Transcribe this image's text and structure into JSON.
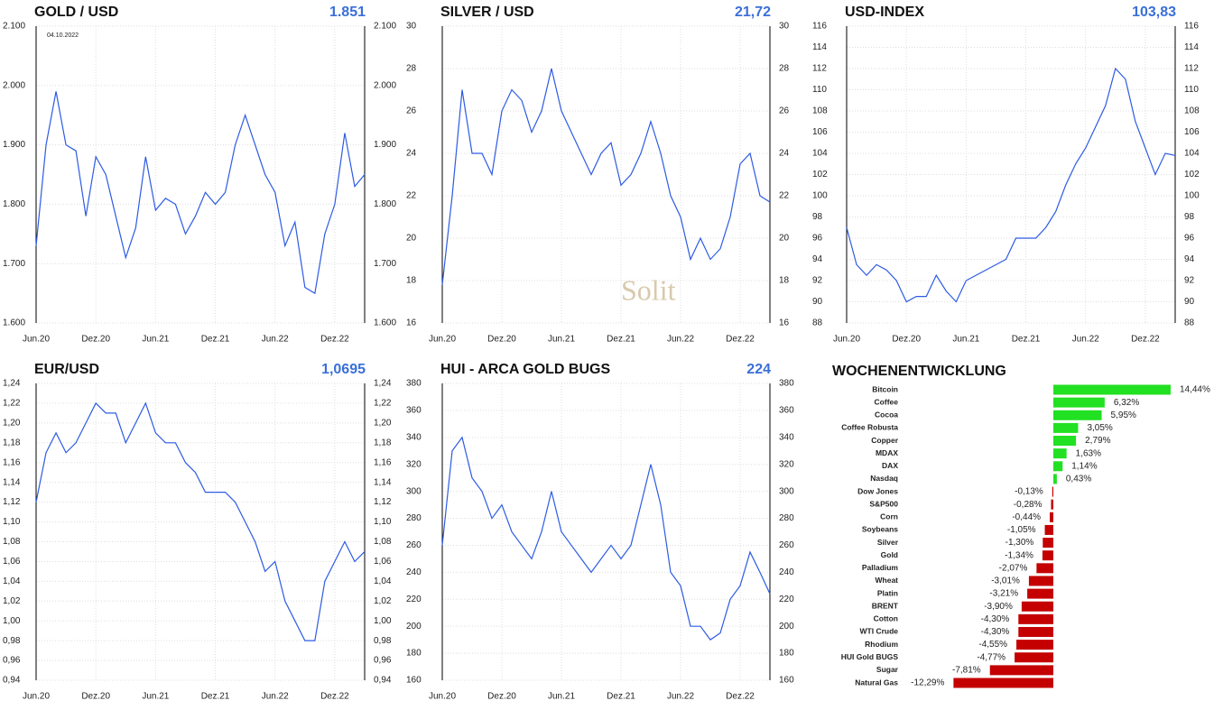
{
  "chart_data": [
    {
      "type": "line",
      "title": "GOLD / USD",
      "headline": "1.851",
      "annotation": "04.10.2022",
      "categories": [
        "Jun.20",
        null,
        null,
        null,
        null,
        null,
        "Dez.20",
        null,
        null,
        null,
        null,
        null,
        "Jun.21",
        null,
        null,
        null,
        null,
        null,
        "Dez.21",
        null,
        null,
        null,
        null,
        null,
        "Jun.22",
        null,
        null,
        null,
        null,
        null,
        "Dez.22",
        null,
        null,
        null
      ],
      "series": [
        {
          "name": "GOLD / USD",
          "color": "#2d5be3",
          "values": [
            1730,
            1900,
            1990,
            1900,
            1890,
            1780,
            1880,
            1850,
            1780,
            1710,
            1760,
            1880,
            1790,
            1810,
            1800,
            1750,
            1780,
            1820,
            1800,
            1820,
            1900,
            1950,
            1900,
            1850,
            1820,
            1730,
            1770,
            1660,
            1650,
            1750,
            1800,
            1920,
            1830,
            1850
          ]
        }
      ],
      "ylim": [
        1600,
        2100
      ],
      "yticks": [
        {
          "value": 1600,
          "label": "1.600"
        },
        {
          "value": 1700,
          "label": "1.700"
        },
        {
          "value": 1800,
          "label": "1.800"
        },
        {
          "value": 1900,
          "label": "1.900"
        },
        {
          "value": 2000,
          "label": "2.000"
        },
        {
          "value": 2100,
          "label": "2.100"
        }
      ],
      "grid": true
    },
    {
      "type": "line",
      "title": "SILVER / USD",
      "headline": "21,72",
      "watermark": "Solit",
      "categories": [
        "Jun.20",
        null,
        null,
        null,
        null,
        null,
        "Dez.20",
        null,
        null,
        null,
        null,
        null,
        "Jun.21",
        null,
        null,
        null,
        null,
        null,
        "Dez.21",
        null,
        null,
        null,
        null,
        null,
        "Jun.22",
        null,
        null,
        null,
        null,
        null,
        "Dez.22",
        null,
        null,
        null
      ],
      "series": [
        {
          "name": "SILVER / USD",
          "color": "#2d5be3",
          "values": [
            17.8,
            22,
            27,
            24,
            24,
            23,
            26,
            27,
            26.5,
            25,
            26,
            28,
            26,
            25,
            24,
            23,
            24,
            24.5,
            22.5,
            23,
            24,
            25.5,
            24,
            22,
            21,
            19,
            20,
            19,
            19.5,
            21,
            23.5,
            24,
            22,
            21.7
          ]
        }
      ],
      "ylim": [
        16,
        30
      ],
      "yticks": [
        16,
        18,
        20,
        22,
        24,
        26,
        28,
        30
      ],
      "grid": true
    },
    {
      "type": "line",
      "title": "USD-INDEX",
      "headline": "103,83",
      "categories": [
        "Jun.20",
        null,
        null,
        null,
        null,
        null,
        "Dez.20",
        null,
        null,
        null,
        null,
        null,
        "Jun.21",
        null,
        null,
        null,
        null,
        null,
        "Dez.21",
        null,
        null,
        null,
        null,
        null,
        "Jun.22",
        null,
        null,
        null,
        null,
        null,
        "Dez.22",
        null,
        null,
        null
      ],
      "series": [
        {
          "name": "USD-INDEX",
          "color": "#2d5be3",
          "values": [
            97,
            93.5,
            92.5,
            93.5,
            93,
            92,
            90,
            90.5,
            90.5,
            92.5,
            91,
            90,
            92,
            92.5,
            93,
            93.5,
            94,
            96,
            96,
            96,
            97,
            98.5,
            101,
            103,
            104.5,
            106.5,
            108.5,
            112,
            111,
            107,
            104.5,
            102,
            104,
            103.8
          ]
        }
      ],
      "ylim": [
        88,
        116
      ],
      "yticks": [
        88,
        90,
        92,
        94,
        96,
        98,
        100,
        102,
        104,
        106,
        108,
        110,
        112,
        114,
        116
      ],
      "grid": true
    },
    {
      "type": "line",
      "title": "EUR/USD",
      "headline": "1,0695",
      "categories": [
        "Jun.20",
        null,
        null,
        null,
        null,
        null,
        "Dez.20",
        null,
        null,
        null,
        null,
        null,
        "Jun.21",
        null,
        null,
        null,
        null,
        null,
        "Dez.21",
        null,
        null,
        null,
        null,
        null,
        "Jun.22",
        null,
        null,
        null,
        null,
        null,
        "Dez.22",
        null,
        null,
        null
      ],
      "series": [
        {
          "name": "EUR/USD",
          "color": "#2d5be3",
          "values": [
            1.12,
            1.17,
            1.19,
            1.17,
            1.18,
            1.2,
            1.22,
            1.21,
            1.21,
            1.18,
            1.2,
            1.22,
            1.19,
            1.18,
            1.18,
            1.16,
            1.15,
            1.13,
            1.13,
            1.13,
            1.12,
            1.1,
            1.08,
            1.05,
            1.06,
            1.02,
            1.0,
            0.98,
            0.98,
            1.04,
            1.06,
            1.08,
            1.06,
            1.07
          ]
        }
      ],
      "ylim": [
        0.94,
        1.24
      ],
      "yticks": [
        {
          "value": 0.94,
          "label": "0,94"
        },
        {
          "value": 0.96,
          "label": "0,96"
        },
        {
          "value": 0.98,
          "label": "0,98"
        },
        {
          "value": 1.0,
          "label": "1,00"
        },
        {
          "value": 1.02,
          "label": "1,02"
        },
        {
          "value": 1.04,
          "label": "1,04"
        },
        {
          "value": 1.06,
          "label": "1,06"
        },
        {
          "value": 1.08,
          "label": "1,08"
        },
        {
          "value": 1.1,
          "label": "1,10"
        },
        {
          "value": 1.12,
          "label": "1,12"
        },
        {
          "value": 1.14,
          "label": "1,14"
        },
        {
          "value": 1.16,
          "label": "1,16"
        },
        {
          "value": 1.18,
          "label": "1,18"
        },
        {
          "value": 1.2,
          "label": "1,20"
        },
        {
          "value": 1.22,
          "label": "1,22"
        },
        {
          "value": 1.24,
          "label": "1,24"
        }
      ],
      "grid": true
    },
    {
      "type": "line",
      "title": "HUI - ARCA GOLD BUGS",
      "headline": "224",
      "categories": [
        "Jun.20",
        null,
        null,
        null,
        null,
        null,
        "Dez.20",
        null,
        null,
        null,
        null,
        null,
        "Jun.21",
        null,
        null,
        null,
        null,
        null,
        "Dez.21",
        null,
        null,
        null,
        null,
        null,
        "Jun.22",
        null,
        null,
        null,
        null,
        null,
        "Dez.22",
        null,
        null,
        null
      ],
      "series": [
        {
          "name": "HUI - ARCA GOLD BUGS",
          "color": "#2d5be3",
          "values": [
            260,
            330,
            340,
            310,
            300,
            280,
            290,
            270,
            260,
            250,
            270,
            300,
            270,
            260,
            250,
            240,
            250,
            260,
            250,
            260,
            290,
            320,
            290,
            240,
            230,
            200,
            200,
            190,
            195,
            220,
            230,
            255,
            240,
            224
          ]
        }
      ],
      "ylim": [
        160,
        380
      ],
      "yticks": [
        160,
        180,
        200,
        220,
        240,
        260,
        280,
        300,
        320,
        340,
        360,
        380
      ],
      "grid": true
    },
    {
      "type": "bar",
      "orientation": "horizontal",
      "title": "WOCHENENTWICKLUNG",
      "categories": [
        "Bitcoin",
        "Coffee",
        "Cocoa",
        "Coffee Robusta",
        "Copper",
        "MDAX",
        "DAX",
        "Nasdaq",
        "Dow Jones",
        "S&P500",
        "Corn",
        "Soybeans",
        "Silver",
        "Gold",
        "Palladium",
        "Wheat",
        "Platin",
        "BRENT",
        "Cotton",
        "WTI Crude",
        "Rhodium",
        "HUI Gold BUGS",
        "Sugar",
        "Natural Gas"
      ],
      "values": [
        14.44,
        6.32,
        5.95,
        3.05,
        2.79,
        1.63,
        1.14,
        0.43,
        -0.13,
        -0.28,
        -0.44,
        -1.05,
        -1.3,
        -1.34,
        -2.07,
        -3.01,
        -3.21,
        -3.9,
        -4.3,
        -4.3,
        -4.55,
        -4.77,
        -7.81,
        -12.29
      ],
      "value_labels": [
        "14,44%",
        "6,32%",
        "5,95%",
        "3,05%",
        "2,79%",
        "1,63%",
        "1,14%",
        "0,43%",
        "-0,13%",
        "-0,28%",
        "-0,44%",
        "-1,05%",
        "-1,30%",
        "-1,34%",
        "-2,07%",
        "-3,01%",
        "-3,21%",
        "-3,90%",
        "-4,30%",
        "-4,30%",
        "-4,55%",
        "-4,77%",
        "-7,81%",
        "-12,29%"
      ],
      "positive_color": "#22e022",
      "negative_color": "#c40000"
    }
  ]
}
